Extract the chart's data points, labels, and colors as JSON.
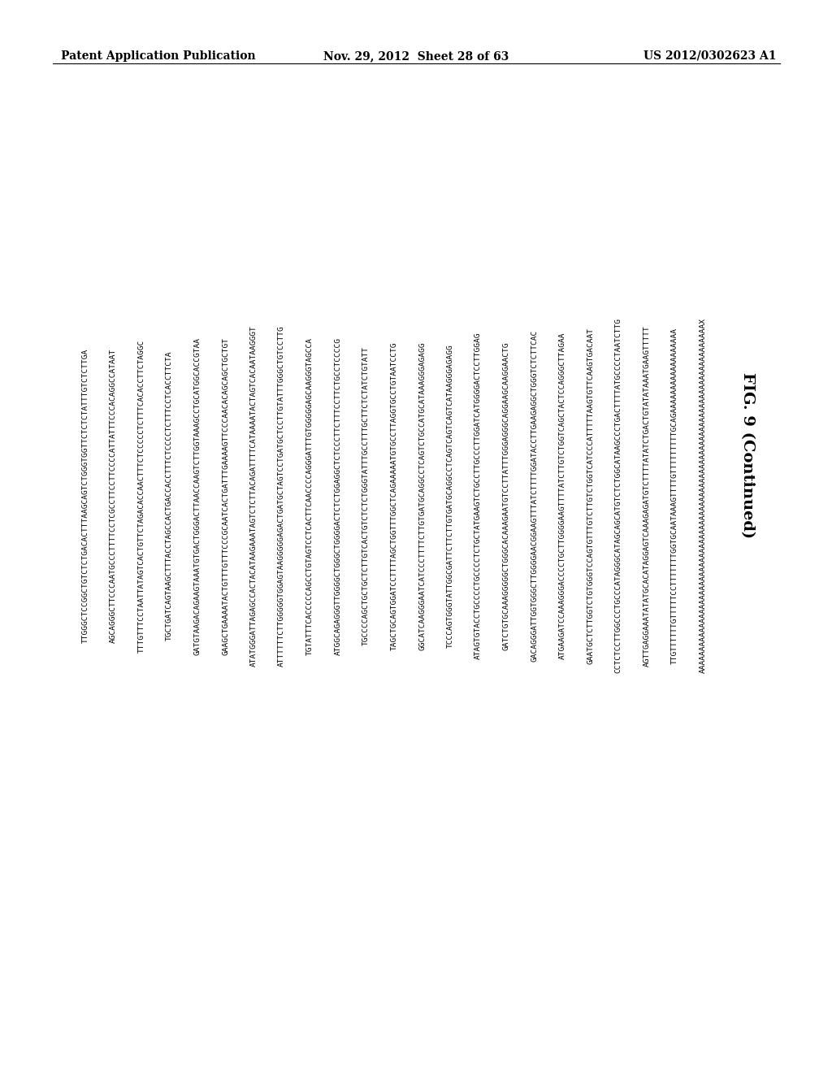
{
  "header_left": "Patent Application Publication",
  "header_center": "Nov. 29, 2012  Sheet 28 of 63",
  "header_right": "US 2012/0302623 A1",
  "fig_label": "FIG. 9 (Continued)",
  "sequences": [
    "TTGGGCTCCGGCTGTCTCTGACACTTTAAGCAGTCTGGGTGGTTCTCTCTATTTGTCTCTTGA",
    "AGCAGGGCTTCCCAATGCCCTTTTCCTCGCCTTCCTTCCCCATTATTTCCCACAGGCCATAAT",
    "TTTGTTTCCTAATTATAGTCACTGTTCTAGACACCAACTTTCTCCCCCTCTTTCACACCTTCTAGGC",
    "TGCTGATCAGTAAGCTTTACCTAGCCACTGACCACCTTTCTCCCCTCTTTCCTCACCTTCTA",
    "GATGTAAGACAGAAGTAAATGTGACTGGGACTTAACCAAGTCTTGGTAAAGCCTGCATGGCACCGTAA",
    "GAAGCTGAAAATACTGTTTGTTTCCCGCAATCACTGATTTGAAAAGTTCCCAACACAGCAGCTGCTGT",
    "ATATGGGATTAGAGCCACTACATAAGAAATAGTCTCTTACAGATTTTCATAAAATACTAGTCACAATAAGGGT",
    "ATTTTTTCTTGGGGGTGGAGTAAGGGGGAGACTGATGCTAGTCCTGATGCTCCTTGTATTTGGGCTGTCCTTG",
    "TGTATTTCACCCCCAGCCTGTAGTCCTCACTTCAACCCCAGGGATTTGTGGGGGAGCAAGGGTAGCCA",
    "ATGGCAGAGGGTTGGGGCTGGGCTGGGGACTCTCTGGAGGCTCTCCCTTCTTTCCTTCTGCCTCCCCG",
    "TGCCCCAGCTGCTGCTCTTGTCACTGTCTCTCTGGGTATTTGCCTTTGCTTCTCTATCTGTATT",
    "TAGCTGCAGTGGATCCTTTTAGCTGGTTTGGCTCAGAAAAATGTGCCTTAGGTGCCTGTAATCCTG",
    "GGCATCAAGGGAATCATCCCTTTTCTTGTGATGCAGGCCTCAGTCTGCCATGCATAAAGGGAGAGG",
    "TCCCAGTGGGTATTGGCGATTCTTCTTGTGATGCAGGCCTCAGTCAGTCAGTCATAAGGGAGAGG",
    "ATAGTGTACCTGCCCCTGCCCCTCTGCTATGAAGTCTGCCTTGCCCTTGGATCATGGGGACTCCTTGGAG",
    "GATCTGTGCAAAGGGGGCTGGGCACAAAGAATGTCCTTATTTGGGAGGGCAGGAAGCAAGGAACTG",
    "GACAGGGATTGGTGGGCTTGGGGAACGGAAGTTTATCTTTTGGATACCTTGAAGAGGCTGGGTCTCTTCAC",
    "ATGAAGATCCAAAGGGACCCCTGCTTGGGGAAGTTTTATCTTGTCTGGTCAGCTACTCCAGGGCTTAGAA",
    "GAATGCTCTTGGTCTGTGGGTCCAGTGTTTGTCTTGTCTGGTCATCCCATTTTTAAGTGTTCAAGTGACAAT",
    "CCTCTCCTTGGCCCTGCCCATAGGGCATAGCAGCATGTCTCTGGCATAAGCCCTGACTTTTATGCCCCTAATCTTG",
    "AGTTGAGGAAATATATGCACATAGGAGTCAAAGAGATGTCTTTTATATCTGACTGTATATAAATGAAGTTTTT",
    "TTGTTTTTTGTTTTTCCTTTTTTTGGTGCAATAAAGTTTTGTTTTTTTTTGCAGAAAAAAAAAAAAAAAAAA",
    "AAAAAAAAAAAAAAAAAAAAAAAAAAAAAAAAAAAAAAAAAAAAAAAAAAAAAAAAAAAAAAAAAAAAAAAAAAAX"
  ],
  "bg_color": "#ffffff",
  "text_color": "#000000",
  "header_fontsize": 10,
  "seq_fontsize": 6.8,
  "fig_label_fontsize": 14
}
